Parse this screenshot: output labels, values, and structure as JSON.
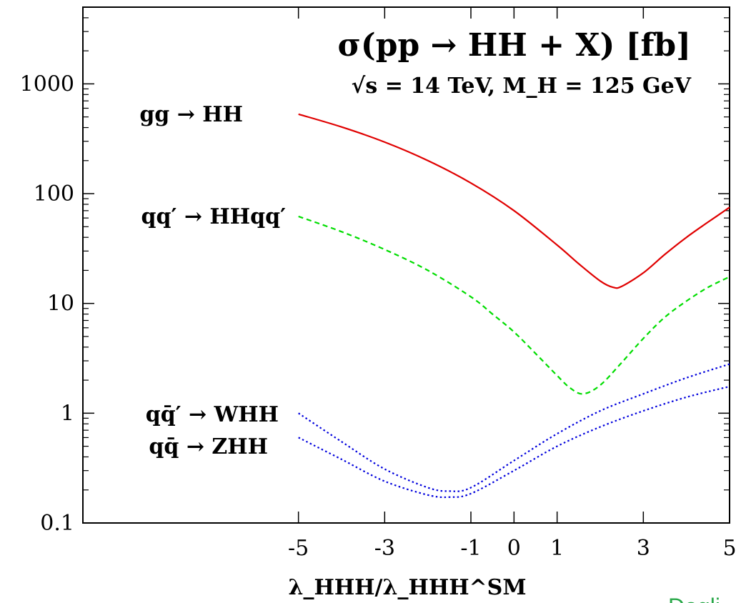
{
  "chart_data": {
    "type": "line",
    "title": "σ(pp → HH + X) [fb]",
    "subtitle": "√s = 14 TeV, M_H = 125 GeV",
    "xlabel": "λ_HHH/λ_HHH^SM",
    "ylabel": "",
    "xlim": [
      -10,
      5
    ],
    "ylim": [
      0.1,
      5000
    ],
    "yscale": "log",
    "grid": false,
    "legend": "inline labels at left of curves",
    "x_ticks": [
      -5,
      -3,
      -1,
      0,
      1,
      3,
      5
    ],
    "x_tick_labels": [
      "-5",
      "-3",
      "-1",
      "0",
      "1",
      "3",
      "5"
    ],
    "y_ticks": [
      0.1,
      1,
      10,
      100,
      1000
    ],
    "y_tick_labels": [
      "0.1",
      "1",
      "10",
      "100",
      "1000"
    ],
    "series": [
      {
        "name": "gg → HH",
        "color": "#e00000",
        "dash": "solid",
        "x": [
          -5,
          -4,
          -3,
          -2,
          -1,
          0,
          1,
          1.5,
          2,
          2.3,
          2.5,
          3,
          3.5,
          4,
          4.5,
          5
        ],
        "y": [
          530,
          405,
          295,
          200,
          125,
          70,
          34,
          23,
          16,
          14,
          14.3,
          19,
          28,
          40,
          55,
          75
        ]
      },
      {
        "name": "qq′ → HHqq′",
        "color": "#00dd00",
        "dash": "dashed",
        "x": [
          -5,
          -4,
          -3,
          -2,
          -1,
          -0.5,
          0,
          0.5,
          1,
          1.3,
          1.6,
          2,
          2.5,
          3,
          3.5,
          4,
          4.5,
          5
        ],
        "y": [
          62,
          45,
          31,
          20,
          11.5,
          8,
          5.5,
          3.5,
          2.2,
          1.7,
          1.5,
          1.8,
          2.9,
          4.8,
          7.5,
          10.5,
          14,
          17.5
        ]
      },
      {
        "name": "qq̄′ → WHH",
        "color": "#0000dd",
        "dash": "dotted",
        "x": [
          -5,
          -4,
          -3,
          -2,
          -1.5,
          -1,
          0,
          1,
          2,
          3,
          4,
          5
        ],
        "y": [
          1.0,
          0.55,
          0.31,
          0.21,
          0.195,
          0.21,
          0.37,
          0.65,
          1.05,
          1.5,
          2.1,
          2.8
        ]
      },
      {
        "name": "qq̄ → ZHH",
        "color": "#0000dd",
        "dash": "dotted",
        "x": [
          -5,
          -4,
          -3,
          -2,
          -1.5,
          -1,
          0,
          1,
          2,
          3,
          4,
          5
        ],
        "y": [
          0.6,
          0.38,
          0.24,
          0.18,
          0.172,
          0.185,
          0.3,
          0.5,
          0.75,
          1.05,
          1.4,
          1.75
        ]
      }
    ]
  },
  "watermark": "Dogli"
}
